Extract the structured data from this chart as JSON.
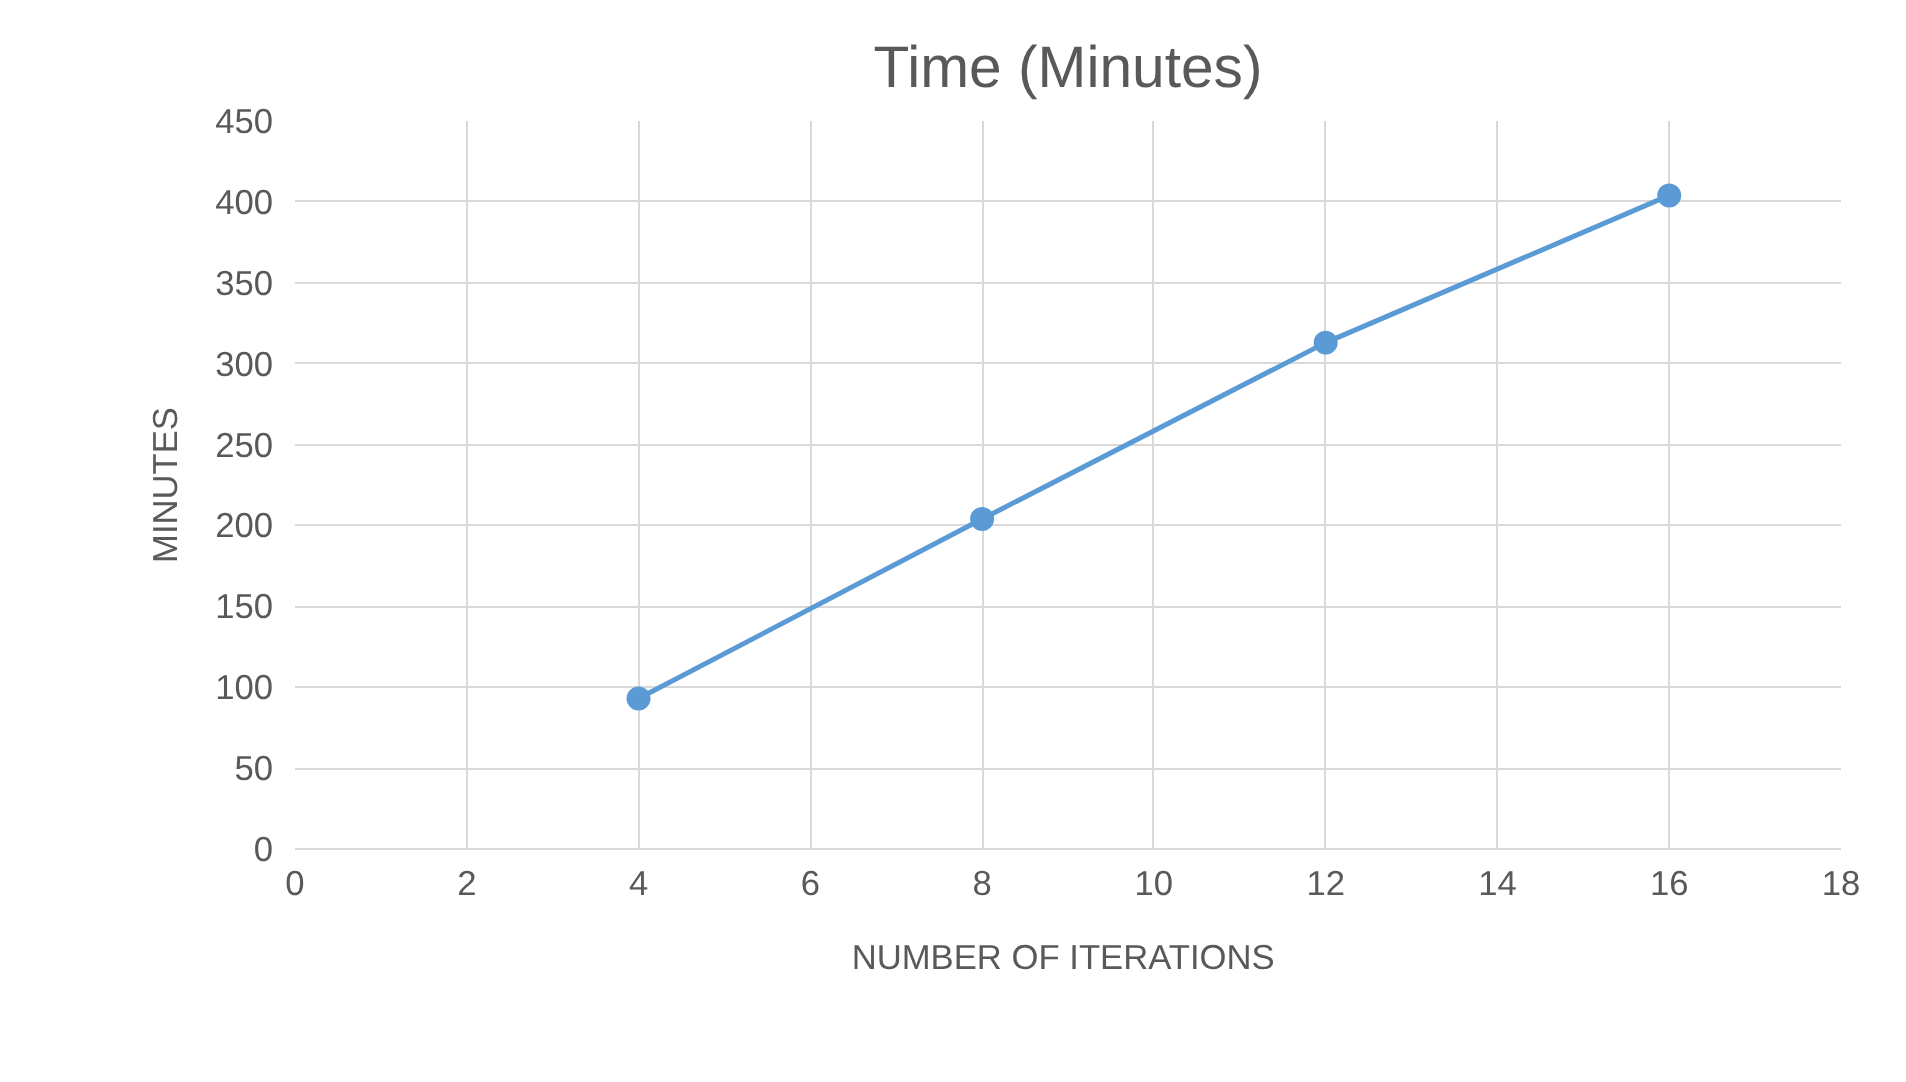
{
  "chart_data": {
    "type": "line",
    "title": "Time (Minutes)",
    "xlabel": "NUMBER  OF ITERATIONS",
    "ylabel": "MINUTES",
    "x": [
      4,
      8,
      12,
      16
    ],
    "series": [
      {
        "color": "#5b9bd5",
        "values": [
          93,
          204,
          313,
          404
        ]
      }
    ],
    "xlim": [
      0,
      18
    ],
    "xticks": [
      0,
      2,
      4,
      6,
      8,
      10,
      12,
      14,
      16,
      18
    ],
    "ylim": [
      0,
      450
    ],
    "yticks": [
      0,
      50,
      100,
      150,
      200,
      250,
      300,
      350,
      400,
      450
    ],
    "grid": true,
    "marker": "circle",
    "line_style": "solid"
  }
}
